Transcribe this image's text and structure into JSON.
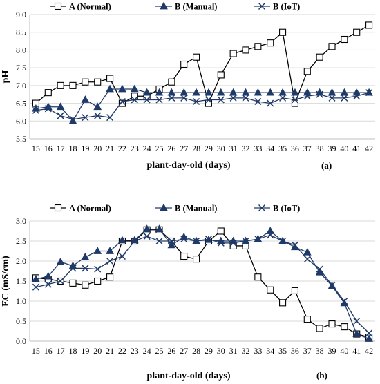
{
  "chart_data": [
    {
      "type": "line",
      "panel_label": "(a)",
      "xlabel": "plant-day-old (days)",
      "ylabel": "pH",
      "ylim": [
        5.5,
        9.0
      ],
      "yticks": [
        "5.5",
        "6.0",
        "6.5",
        "7.0",
        "7.5",
        "8.0",
        "8.5",
        "9.0"
      ],
      "grid": true,
      "legend_position": "top",
      "x": [
        15,
        16,
        17,
        18,
        19,
        20,
        21,
        22,
        23,
        24,
        25,
        26,
        27,
        28,
        29,
        30,
        31,
        32,
        33,
        34,
        35,
        36,
        37,
        38,
        39,
        40,
        41,
        42
      ],
      "series": [
        {
          "name": "A (Normal)",
          "marker": "square-open",
          "values": [
            6.5,
            6.8,
            7.0,
            7.0,
            7.1,
            7.1,
            7.2,
            6.5,
            6.7,
            6.7,
            6.9,
            7.1,
            7.6,
            7.8,
            6.5,
            7.3,
            7.9,
            8.0,
            8.1,
            8.2,
            8.5,
            6.5,
            7.4,
            7.8,
            8.1,
            8.3,
            8.5,
            8.7
          ]
        },
        {
          "name": "B (Manual)",
          "marker": "triangle-filled",
          "values": [
            6.35,
            6.4,
            6.4,
            6.0,
            6.6,
            6.4,
            6.9,
            6.9,
            6.9,
            6.8,
            6.8,
            6.8,
            6.8,
            6.8,
            6.8,
            6.8,
            6.8,
            6.8,
            6.8,
            6.8,
            6.8,
            6.8,
            6.8,
            6.8,
            6.8,
            6.8,
            6.8,
            6.8
          ]
        },
        {
          "name": "B (IoT)",
          "marker": "x",
          "values": [
            6.3,
            6.35,
            6.15,
            6.05,
            6.1,
            6.15,
            6.1,
            6.55,
            6.6,
            6.6,
            6.6,
            6.65,
            6.65,
            6.55,
            6.6,
            6.6,
            6.65,
            6.65,
            6.55,
            6.5,
            6.65,
            6.6,
            6.7,
            6.75,
            6.65,
            6.65,
            6.7,
            6.8
          ]
        }
      ]
    },
    {
      "type": "line",
      "panel_label": "(b)",
      "xlabel": "plant-day-old (days)",
      "ylabel": "EC (mS/cm)",
      "ylim": [
        0.0,
        3.0
      ],
      "yticks": [
        "0.0",
        "0.5",
        "1.0",
        "1.5",
        "2.0",
        "2.5",
        "3.0"
      ],
      "grid": true,
      "legend_position": "top",
      "x": [
        15,
        16,
        17,
        18,
        19,
        20,
        21,
        22,
        23,
        24,
        25,
        26,
        27,
        28,
        29,
        30,
        31,
        32,
        33,
        34,
        35,
        36,
        37,
        38,
        39,
        40,
        41,
        42
      ],
      "series": [
        {
          "name": "A (Normal)",
          "marker": "square-open",
          "values": [
            1.58,
            1.55,
            1.5,
            1.45,
            1.4,
            1.5,
            1.6,
            2.5,
            2.5,
            2.78,
            2.78,
            2.5,
            2.12,
            2.05,
            2.5,
            2.75,
            2.38,
            2.38,
            1.6,
            1.28,
            0.96,
            1.26,
            0.55,
            0.32,
            0.43,
            0.36,
            0.18,
            0.1
          ]
        },
        {
          "name": "B (Manual)",
          "marker": "triangle-filled",
          "values": [
            1.55,
            1.62,
            1.98,
            1.88,
            2.1,
            2.25,
            2.25,
            2.52,
            2.52,
            2.8,
            2.8,
            2.4,
            2.6,
            2.5,
            2.53,
            2.5,
            2.5,
            2.5,
            2.55,
            2.75,
            2.5,
            2.35,
            2.22,
            1.72,
            1.38,
            0.95,
            0.18,
            0.06
          ]
        },
        {
          "name": "B (IoT)",
          "marker": "x",
          "values": [
            1.35,
            1.42,
            1.5,
            1.82,
            1.82,
            1.8,
            2.0,
            2.12,
            2.5,
            2.62,
            2.5,
            2.5,
            2.55,
            2.5,
            2.55,
            2.45,
            2.45,
            2.5,
            2.55,
            2.65,
            2.5,
            2.4,
            2.05,
            1.8,
            1.4,
            1.0,
            0.5,
            0.2
          ]
        }
      ]
    }
  ]
}
